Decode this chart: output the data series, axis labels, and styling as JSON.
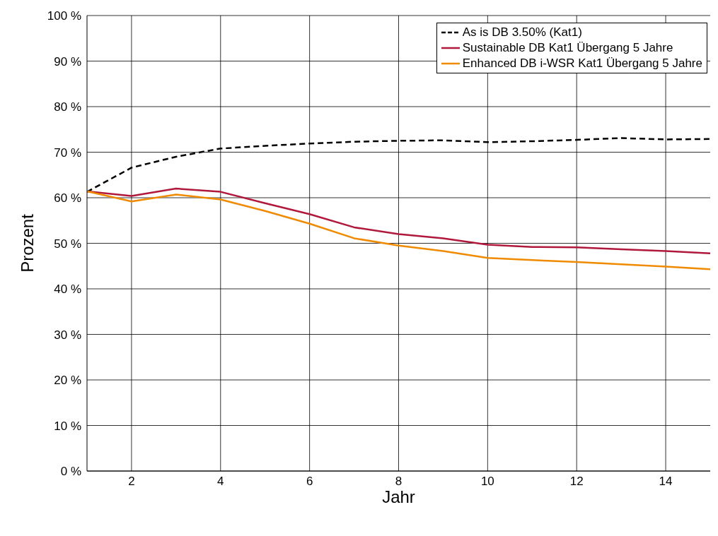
{
  "chart_data": {
    "type": "line",
    "xlabel": "Jahr",
    "ylabel": "Prozent",
    "x": [
      1,
      2,
      3,
      4,
      5,
      6,
      7,
      8,
      9,
      10,
      11,
      12,
      13,
      14,
      15
    ],
    "series": [
      {
        "name": "As is DB 3.50% (Kat1)",
        "color": "#000000",
        "line_style": "dashed",
        "values": [
          61.3,
          66.6,
          69.0,
          70.8,
          71.4,
          71.9,
          72.3,
          72.5,
          72.6,
          72.2,
          72.4,
          72.7,
          73.1,
          72.8,
          72.9
        ]
      },
      {
        "name": "Sustainable DB Kat1 Übergang 5 Jahre",
        "color": "#b0183c",
        "line_style": "solid",
        "values": [
          61.4,
          60.4,
          62.0,
          61.3,
          58.8,
          56.4,
          53.5,
          52.0,
          51.1,
          49.7,
          49.2,
          49.1,
          48.7,
          48.3,
          47.8
        ]
      },
      {
        "name": "Enhanced DB i-WSR Kat1 Übergang 5 Jahre",
        "color": "#f08a00",
        "line_style": "solid",
        "values": [
          61.4,
          59.2,
          60.7,
          59.6,
          57.1,
          54.3,
          51.1,
          49.5,
          48.3,
          46.8,
          46.3,
          45.9,
          45.4,
          44.9,
          44.3
        ]
      }
    ],
    "xlim": [
      1,
      15
    ],
    "xticks": [
      2,
      4,
      6,
      8,
      10,
      12,
      14
    ],
    "ylim": [
      0,
      100
    ],
    "yticks": [
      {
        "value": 0,
        "label": "0 %"
      },
      {
        "value": 10,
        "label": "10 %"
      },
      {
        "value": 20,
        "label": "20 %"
      },
      {
        "value": 30,
        "label": "30 %"
      },
      {
        "value": 40,
        "label": "40 %"
      },
      {
        "value": 50,
        "label": "50 %"
      },
      {
        "value": 60,
        "label": "60 %"
      },
      {
        "value": 70,
        "label": "70 %"
      },
      {
        "value": 80,
        "label": "80 %"
      },
      {
        "value": 90,
        "label": "90 %"
      },
      {
        "value": 100,
        "label": "100 %"
      }
    ],
    "grid": true,
    "legend": "top right",
    "marker": "none"
  }
}
